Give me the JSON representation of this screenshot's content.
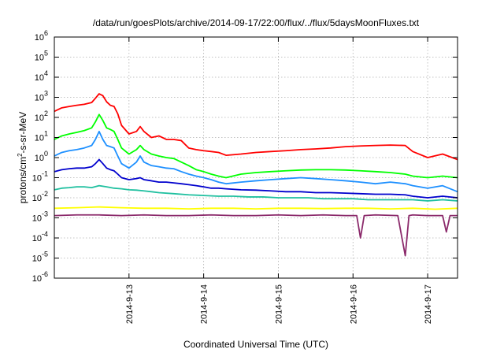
{
  "chart_data": {
    "type": "line",
    "title": "/data/run/goesPlots/archive/2014-09-17/22:00/flux/../flux/5daysMoonFluxes.txt",
    "xlabel": "Coordinated Universal Time (UTC)",
    "ylabel_parts": [
      "protons/cm",
      "2",
      "-s-sr-MeV"
    ],
    "x_ticks": [
      "2014-9-13",
      "2014-9-14",
      "2014-9-15",
      "2014-9-16",
      "2014-9-17"
    ],
    "xlim": [
      0,
      5.4
    ],
    "x_tick_values": [
      1,
      2,
      3,
      4,
      5
    ],
    "y_scale": "log",
    "ylim_exp": [
      -6,
      6
    ],
    "y_ticks": [
      {
        "base": "10",
        "exp": "-6"
      },
      {
        "base": "10",
        "exp": "-5"
      },
      {
        "base": "10",
        "exp": "-4"
      },
      {
        "base": "10",
        "exp": "-3"
      },
      {
        "base": "10",
        "exp": "-2"
      },
      {
        "base": "10",
        "exp": "-1"
      },
      {
        "base": "10",
        "exp": "0"
      },
      {
        "base": "10",
        "exp": "1"
      },
      {
        "base": "10",
        "exp": "2"
      },
      {
        "base": "10",
        "exp": "3"
      },
      {
        "base": "10",
        "exp": "4"
      },
      {
        "base": "10",
        "exp": "5"
      },
      {
        "base": "10",
        "exp": "6"
      }
    ],
    "grid": true,
    "legend": "none",
    "series": [
      {
        "color": "#ff0000",
        "x": [
          0,
          0.1,
          0.2,
          0.3,
          0.4,
          0.5,
          0.55,
          0.6,
          0.65,
          0.7,
          0.75,
          0.8,
          0.85,
          0.9,
          1.0,
          1.1,
          1.15,
          1.2,
          1.3,
          1.4,
          1.5,
          1.6,
          1.7,
          1.8,
          1.9,
          2.0,
          2.1,
          2.2,
          2.3,
          2.5,
          2.7,
          2.9,
          3.1,
          3.3,
          3.5,
          3.7,
          3.9,
          4.1,
          4.3,
          4.5,
          4.7,
          4.8,
          5.0,
          5.2,
          5.4
        ],
        "y": [
          200,
          300,
          350,
          400,
          450,
          550,
          900,
          1500,
          1200,
          600,
          400,
          350,
          150,
          40,
          15,
          20,
          35,
          20,
          10,
          12,
          8,
          8,
          7,
          3,
          2.5,
          2.2,
          2,
          1.8,
          1.3,
          1.5,
          1.8,
          2.0,
          2.2,
          2.5,
          2.7,
          3.0,
          3.5,
          3.8,
          4.0,
          4.2,
          4.0,
          2.0,
          1.0,
          1.5,
          0.8
        ]
      },
      {
        "color": "#00ff00",
        "x": [
          0,
          0.1,
          0.2,
          0.3,
          0.4,
          0.5,
          0.55,
          0.6,
          0.65,
          0.7,
          0.75,
          0.8,
          0.85,
          0.9,
          1.0,
          1.1,
          1.15,
          1.2,
          1.3,
          1.4,
          1.5,
          1.6,
          1.7,
          1.8,
          1.9,
          2.0,
          2.1,
          2.2,
          2.3,
          2.5,
          2.7,
          2.9,
          3.1,
          3.3,
          3.5,
          3.7,
          3.9,
          4.1,
          4.3,
          4.5,
          4.7,
          4.8,
          5.0,
          5.2,
          5.4
        ],
        "y": [
          8,
          12,
          15,
          18,
          22,
          30,
          60,
          140,
          70,
          30,
          25,
          20,
          8,
          3,
          1.5,
          2.5,
          4,
          2.5,
          1.5,
          1.2,
          1.0,
          0.9,
          0.6,
          0.4,
          0.25,
          0.2,
          0.15,
          0.12,
          0.1,
          0.15,
          0.18,
          0.2,
          0.22,
          0.24,
          0.25,
          0.25,
          0.24,
          0.22,
          0.2,
          0.18,
          0.15,
          0.12,
          0.1,
          0.12,
          0.1
        ]
      },
      {
        "color": "#1e90ff",
        "x": [
          0,
          0.1,
          0.2,
          0.3,
          0.4,
          0.5,
          0.55,
          0.6,
          0.65,
          0.7,
          0.75,
          0.8,
          0.85,
          0.9,
          1.0,
          1.1,
          1.15,
          1.2,
          1.3,
          1.4,
          1.5,
          1.6,
          1.7,
          1.8,
          1.9,
          2.0,
          2.1,
          2.2,
          2.3,
          2.5,
          2.7,
          2.9,
          3.1,
          3.3,
          3.5,
          3.7,
          3.9,
          4.1,
          4.3,
          4.5,
          4.7,
          4.8,
          5.0,
          5.2,
          5.4
        ],
        "y": [
          1.2,
          1.8,
          2.2,
          2.5,
          3.0,
          4.0,
          8,
          20,
          8,
          4,
          3.5,
          3,
          1.2,
          0.5,
          0.3,
          0.6,
          1.2,
          0.6,
          0.4,
          0.35,
          0.3,
          0.28,
          0.2,
          0.15,
          0.12,
          0.1,
          0.08,
          0.06,
          0.05,
          0.06,
          0.07,
          0.08,
          0.09,
          0.1,
          0.09,
          0.08,
          0.07,
          0.06,
          0.05,
          0.06,
          0.05,
          0.04,
          0.03,
          0.04,
          0.02
        ]
      },
      {
        "color": "#0000cd",
        "x": [
          0,
          0.1,
          0.2,
          0.3,
          0.4,
          0.5,
          0.55,
          0.6,
          0.65,
          0.7,
          0.75,
          0.8,
          0.85,
          0.9,
          1.0,
          1.1,
          1.15,
          1.2,
          1.3,
          1.4,
          1.5,
          1.6,
          1.7,
          1.8,
          1.9,
          2.0,
          2.1,
          2.2,
          2.3,
          2.5,
          2.7,
          2.9,
          3.1,
          3.3,
          3.5,
          3.7,
          3.9,
          4.1,
          4.3,
          4.5,
          4.7,
          4.8,
          5.0,
          5.2,
          5.4
        ],
        "y": [
          0.2,
          0.25,
          0.28,
          0.3,
          0.3,
          0.35,
          0.5,
          0.8,
          0.5,
          0.3,
          0.25,
          0.22,
          0.15,
          0.1,
          0.08,
          0.09,
          0.1,
          0.08,
          0.07,
          0.06,
          0.06,
          0.055,
          0.05,
          0.045,
          0.04,
          0.035,
          0.03,
          0.03,
          0.028,
          0.025,
          0.024,
          0.022,
          0.02,
          0.02,
          0.018,
          0.018,
          0.017,
          0.016,
          0.015,
          0.015,
          0.014,
          0.012,
          0.01,
          0.012,
          0.01
        ]
      },
      {
        "color": "#20c0a0",
        "x": [
          0,
          0.1,
          0.2,
          0.3,
          0.4,
          0.5,
          0.6,
          0.7,
          0.8,
          0.9,
          1.0,
          1.1,
          1.2,
          1.3,
          1.4,
          1.6,
          1.8,
          2.0,
          2.2,
          2.4,
          2.6,
          2.8,
          3.0,
          3.2,
          3.4,
          3.6,
          3.8,
          4.0,
          4.2,
          4.4,
          4.6,
          4.8,
          5.0,
          5.2,
          5.4
        ],
        "y": [
          0.025,
          0.03,
          0.032,
          0.035,
          0.035,
          0.032,
          0.04,
          0.035,
          0.03,
          0.028,
          0.025,
          0.024,
          0.022,
          0.02,
          0.018,
          0.016,
          0.014,
          0.013,
          0.012,
          0.012,
          0.011,
          0.011,
          0.01,
          0.01,
          0.01,
          0.009,
          0.009,
          0.009,
          0.008,
          0.008,
          0.008,
          0.008,
          0.007,
          0.008,
          0.007
        ]
      },
      {
        "color": "#ffff00",
        "x": [
          0,
          0.3,
          0.6,
          0.9,
          1.2,
          1.5,
          1.8,
          2.1,
          2.4,
          2.7,
          3.0,
          3.3,
          3.6,
          3.9,
          4.2,
          4.5,
          4.8,
          5.1,
          5.4
        ],
        "y": [
          0.003,
          0.0032,
          0.0035,
          0.0032,
          0.003,
          0.003,
          0.0028,
          0.003,
          0.003,
          0.0028,
          0.003,
          0.003,
          0.0029,
          0.003,
          0.003,
          0.0028,
          0.003,
          0.0027,
          0.003
        ]
      },
      {
        "color": "#8b2a6b",
        "x": [
          0,
          0.3,
          0.6,
          0.9,
          1.2,
          1.5,
          1.8,
          2.1,
          2.4,
          2.7,
          3.0,
          3.3,
          3.6,
          3.9,
          4.05,
          4.1,
          4.15,
          4.3,
          4.6,
          4.7,
          4.75,
          4.8,
          5.0,
          5.2,
          5.25,
          5.3,
          5.4
        ],
        "y": [
          0.0013,
          0.0014,
          0.0014,
          0.0013,
          0.0014,
          0.0013,
          0.0013,
          0.0014,
          0.0013,
          0.0013,
          0.0014,
          0.0013,
          0.0014,
          0.0013,
          0.0013,
          0.0001,
          0.0013,
          0.0014,
          0.0013,
          1.3e-05,
          0.0013,
          0.0014,
          0.0013,
          0.0013,
          0.0002,
          0.0013,
          0.0013
        ]
      }
    ]
  }
}
